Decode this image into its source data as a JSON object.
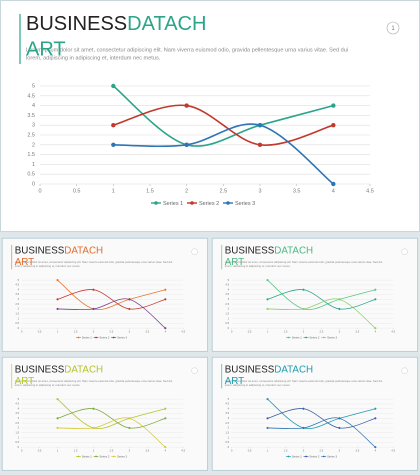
{
  "chart_data": [
    {
      "type": "line",
      "title_parts": [
        "BUSINESS",
        "DATACH",
        "ART"
      ],
      "accent": "#2aa58a",
      "page_number": "1",
      "body_lines": [
        "Lorem ipsum dolor sit amet, consectetur adipiscing elit. Nam viverra euismod odio, gravida pellentesque urna varius vitae. Sed dui",
        "lorem, adipiscing in adipiscing et, interdum nec metus."
      ],
      "x": [
        1,
        2,
        3,
        4
      ],
      "series": [
        {
          "name": "Series 1",
          "color": "#2aa58a",
          "values": [
            5,
            2,
            3,
            4
          ]
        },
        {
          "name": "Series 2",
          "color": "#c0392b",
          "values": [
            3,
            4,
            2,
            3
          ]
        },
        {
          "name": "Series 3",
          "color": "#2e75b6",
          "values": [
            2,
            2,
            3,
            0
          ]
        }
      ],
      "xlim": [
        0,
        4.5
      ],
      "ylim": [
        0,
        5
      ],
      "xticks": [
        0,
        0.5,
        1,
        1.5,
        2,
        2.5,
        3,
        3.5,
        4,
        4.5
      ],
      "yticks": [
        0,
        0.5,
        1,
        1.5,
        2,
        2.5,
        3,
        3.5,
        4,
        4.5,
        5
      ],
      "grid": true,
      "legend": "bottom"
    },
    {
      "type": "line",
      "title_parts": [
        "BUSINESS",
        "DATACH",
        "ART"
      ],
      "accent": "#e36c28",
      "body_lines": [
        "Lorem ipsum dolor sit amet, consectetur adipiscing elit. Nam viverra euismod odio, gravida pellentesque urna varius vitae. Sed dui",
        "lorem, adipiscing in adipiscing et, interdum nec metus."
      ],
      "x": [
        1,
        2,
        3,
        4
      ],
      "series": [
        {
          "name": "Series 1",
          "color": "#e8762d",
          "values": [
            5,
            2,
            3,
            4
          ]
        },
        {
          "name": "Series 2",
          "color": "#c0392b",
          "values": [
            3,
            4,
            2,
            3
          ]
        },
        {
          "name": "Series 3",
          "color": "#7b3f8c",
          "values": [
            2,
            2,
            3,
            0
          ]
        }
      ],
      "xlim": [
        0,
        4.5
      ],
      "ylim": [
        0,
        5
      ],
      "xticks": [
        0,
        0.5,
        1,
        1.5,
        2,
        2.5,
        3,
        3.5,
        4,
        4.5
      ],
      "yticks": [
        0,
        0.5,
        1,
        1.5,
        2,
        2.5,
        3,
        3.5,
        4,
        4.5,
        5
      ],
      "grid": true,
      "legend": "bottom"
    },
    {
      "type": "line",
      "title_parts": [
        "BUSINESS",
        "DATACH",
        "ART"
      ],
      "accent": "#4cb882",
      "body_lines": [
        "Lorem ipsum dolor sit amet, consectetur adipiscing elit. Nam viverra euismod odio, gravida pellentesque urna varius vitae. Sed dui",
        "lorem, adipiscing in adipiscing et, interdum nec metus."
      ],
      "x": [
        1,
        2,
        3,
        4
      ],
      "series": [
        {
          "name": "Series 1",
          "color": "#5cc48a",
          "values": [
            5,
            2,
            3,
            4
          ]
        },
        {
          "name": "Series 2",
          "color": "#2aa58a",
          "values": [
            3,
            4,
            2,
            3
          ]
        },
        {
          "name": "Series 3",
          "color": "#8fd16a",
          "values": [
            2,
            2,
            3,
            0
          ]
        }
      ],
      "xlim": [
        0,
        4.5
      ],
      "ylim": [
        0,
        5
      ],
      "xticks": [
        0,
        0.5,
        1,
        1.5,
        2,
        2.5,
        3,
        3.5,
        4,
        4.5
      ],
      "yticks": [
        0,
        0.5,
        1,
        1.5,
        2,
        2.5,
        3,
        3.5,
        4,
        4.5,
        5
      ],
      "grid": true,
      "legend": "bottom"
    },
    {
      "type": "line",
      "title_parts": [
        "BUSINESS",
        "DATACH",
        "ART"
      ],
      "accent": "#b5c42a",
      "body_lines": [
        "Lorem ipsum dolor sit amet, consectetur adipiscing elit. Nam viverra euismod odio, gravida pellentesque urna varius vitae. Sed dui",
        "lorem, adipiscing in adipiscing et, interdum nec metus."
      ],
      "x": [
        1,
        2,
        3,
        4
      ],
      "series": [
        {
          "name": "Series 1",
          "color": "#b5c42a",
          "values": [
            5,
            2,
            3,
            4
          ]
        },
        {
          "name": "Series 2",
          "color": "#7aa83a",
          "values": [
            3,
            4,
            2,
            3
          ]
        },
        {
          "name": "Series 3",
          "color": "#d6c93a",
          "values": [
            2,
            2,
            3,
            0
          ]
        }
      ],
      "xlim": [
        0,
        4.5
      ],
      "ylim": [
        0,
        5
      ],
      "xticks": [
        0,
        0.5,
        1,
        1.5,
        2,
        2.5,
        3,
        3.5,
        4,
        4.5
      ],
      "yticks": [
        0,
        0.5,
        1,
        1.5,
        2,
        2.5,
        3,
        3.5,
        4,
        4.5,
        5
      ],
      "grid": true,
      "legend": "bottom"
    },
    {
      "type": "line",
      "title_parts": [
        "BUSINESS",
        "DATACH",
        "ART"
      ],
      "accent": "#1f9bb0",
      "body_lines": [
        "Lorem ipsum dolor sit amet, consectetur adipiscing elit. Nam viverra euismod odio, gravida pellentesque urna varius vitae. Sed dui",
        "lorem, adipiscing in adipiscing et, interdum nec metus."
      ],
      "x": [
        1,
        2,
        3,
        4
      ],
      "series": [
        {
          "name": "Series 1",
          "color": "#1f9bb0",
          "values": [
            5,
            2,
            3,
            4
          ]
        },
        {
          "name": "Series 2",
          "color": "#3a5ea8",
          "values": [
            3,
            4,
            2,
            3
          ]
        },
        {
          "name": "Series 3",
          "color": "#2e75b6",
          "values": [
            2,
            2,
            3,
            0
          ]
        }
      ],
      "xlim": [
        0,
        4.5
      ],
      "ylim": [
        0,
        5
      ],
      "xticks": [
        0,
        0.5,
        1,
        1.5,
        2,
        2.5,
        3,
        3.5,
        4,
        4.5
      ],
      "yticks": [
        0,
        0.5,
        1,
        1.5,
        2,
        2.5,
        3,
        3.5,
        4,
        4.5,
        5
      ],
      "grid": true,
      "legend": "bottom"
    }
  ]
}
